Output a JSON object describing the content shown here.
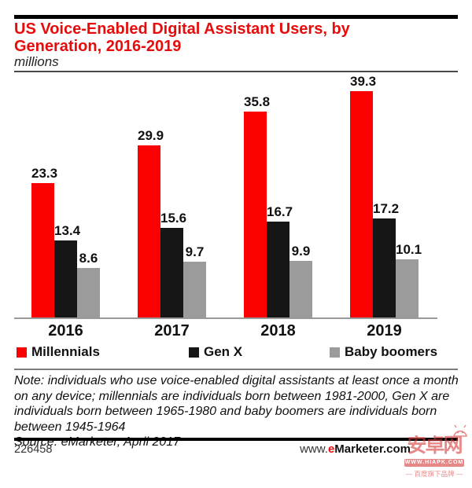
{
  "header": {
    "title": "US Voice-Enabled Digital Assistant Users, by Generation, 2016-2019",
    "subtitle": "millions"
  },
  "chart_data": {
    "type": "bar",
    "title": "US Voice-Enabled Digital Assistant Users, by Generation, 2016-2019",
    "subtitle": "millions",
    "categories": [
      "2016",
      "2017",
      "2018",
      "2019"
    ],
    "series": [
      {
        "name": "Millennials",
        "color": "#fa0000",
        "values": [
          23.3,
          29.9,
          35.8,
          39.3
        ]
      },
      {
        "name": "Gen X",
        "color": "#161616",
        "values": [
          13.4,
          15.6,
          16.7,
          17.2
        ]
      },
      {
        "name": "Baby boomers",
        "color": "#9b9b9b",
        "values": [
          8.6,
          9.7,
          9.9,
          10.1
        ]
      }
    ],
    "ylim": [
      0,
      42
    ],
    "grid": false,
    "value_labels": true,
    "legend_position": "below",
    "xlabel": "",
    "ylabel": "millions"
  },
  "note": {
    "text": "Note: individuals who use voice-enabled digital assistants at least once a month on any device; millennials are individuals born between 1981-2000, Gen X are individuals born between 1965-1980 and baby boomers are individuals born between 1945-1964",
    "source": "Source: eMarketer, April 2017"
  },
  "footer": {
    "chart_id": "226458",
    "url_www": "www.",
    "url_e": "e",
    "url_rest": "Marketer.com"
  },
  "watermark": {
    "site_name": "安卓网",
    "banner": "WWW.HIAPK.COM",
    "tagline": "— 百度旗下品牌 —"
  }
}
